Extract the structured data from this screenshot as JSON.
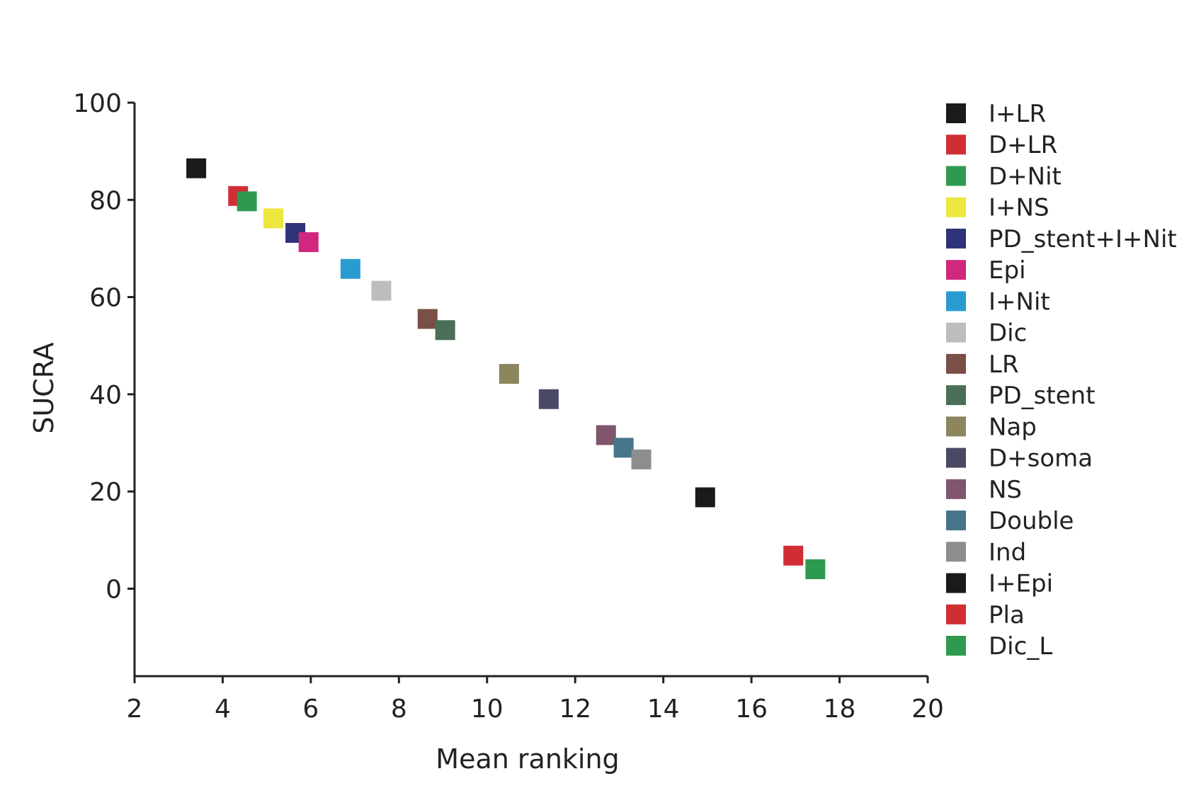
{
  "chart_data": {
    "type": "scatter",
    "title": "",
    "xlabel": "Mean ranking",
    "ylabel": "SUCRA",
    "xlim": [
      2,
      20
    ],
    "ylim": [
      -18,
      100
    ],
    "xticks": [
      "2",
      "4",
      "6",
      "8",
      "10",
      "12",
      "14",
      "16",
      "18",
      "20"
    ],
    "yticks": [
      "0",
      "20",
      "40",
      "60",
      "80",
      "100"
    ],
    "grid": false,
    "legend_position": "right",
    "series": [
      {
        "name": "I+LR",
        "color": "#1a1a1a",
        "x": 3.4,
        "y": 86.5
      },
      {
        "name": "D+LR",
        "color": "#d12d35",
        "x": 4.35,
        "y": 80.8
      },
      {
        "name": "D+Nit",
        "color": "#2e9a4f",
        "x": 4.55,
        "y": 79.7
      },
      {
        "name": "I+NS",
        "color": "#ede63d",
        "x": 5.15,
        "y": 76.2
      },
      {
        "name": "PD_stent+I+Nit",
        "color": "#2f3378",
        "x": 5.65,
        "y": 73.2
      },
      {
        "name": "Epi",
        "color": "#d0287e",
        "x": 5.95,
        "y": 71.3
      },
      {
        "name": "I+Nit",
        "color": "#2a9bd0",
        "x": 6.9,
        "y": 65.8
      },
      {
        "name": "Dic",
        "color": "#bdbdbd",
        "x": 7.6,
        "y": 61.3
      },
      {
        "name": "LR",
        "color": "#7a4f45",
        "x": 8.65,
        "y": 55.5
      },
      {
        "name": "PD_stent",
        "color": "#4a6e57",
        "x": 9.05,
        "y": 53.2
      },
      {
        "name": "Nap",
        "color": "#8c855d",
        "x": 10.5,
        "y": 44.2
      },
      {
        "name": "D+soma",
        "color": "#4a4965",
        "x": 11.4,
        "y": 39.0
      },
      {
        "name": "NS",
        "color": "#7f566d",
        "x": 12.7,
        "y": 31.6
      },
      {
        "name": "Double",
        "color": "#46758a",
        "x": 13.1,
        "y": 29.0
      },
      {
        "name": "Ind",
        "color": "#8b8d8f",
        "x": 13.5,
        "y": 26.6
      },
      {
        "name": "I+Epi",
        "color": "#1a1a1a",
        "x": 14.95,
        "y": 18.8
      },
      {
        "name": "Pla",
        "color": "#d12d35",
        "x": 16.95,
        "y": 6.8
      },
      {
        "name": "Dic_L",
        "color": "#2e9a4f",
        "x": 17.45,
        "y": 4.0
      }
    ]
  }
}
